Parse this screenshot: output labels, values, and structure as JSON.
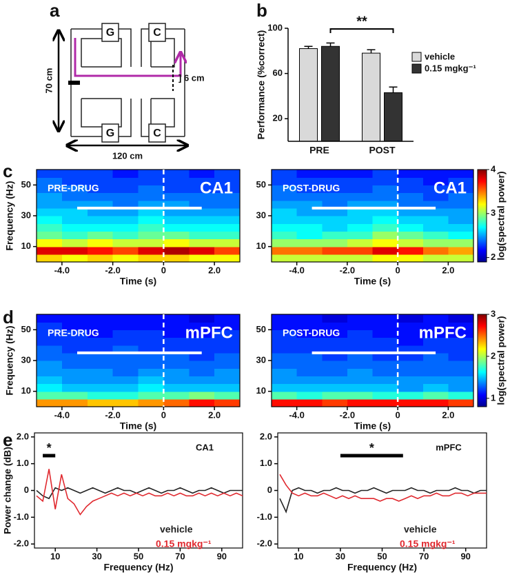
{
  "panel_labels": [
    "a",
    "b",
    "c",
    "d",
    "e"
  ],
  "maze": {
    "goal_labels": [
      "G",
      "C",
      "G",
      "C"
    ],
    "height_label": "70 cm",
    "width_label": "120 cm",
    "corridor_label": "] 6 cm"
  },
  "chart_data": [
    {
      "type": "bar",
      "ylabel": "Performance (%correct)",
      "categories": [
        "PRE",
        "POST"
      ],
      "series": [
        {
          "name": "vehicle",
          "color": "#d9d9d9",
          "values": [
            82,
            78
          ],
          "errors": [
            2,
            3
          ]
        },
        {
          "name": "0.15 mgkg⁻¹",
          "color": "#333333",
          "values": [
            84,
            43
          ],
          "errors": [
            3,
            5
          ]
        }
      ],
      "ylim": [
        0,
        100
      ],
      "yticks": [
        20,
        60,
        100
      ],
      "annotation": "**"
    },
    {
      "type": "heatmap",
      "label": "PRE-DRUG",
      "region": "CA1",
      "xlabel": "Time (s)",
      "ylabel": "Frequency (Hz)",
      "x": [
        -4.5,
        -3.5,
        -2.5,
        -1.5,
        -0.5,
        0.5,
        1.5,
        2.5
      ],
      "y": [
        2.5,
        7.5,
        12.5,
        17.5,
        22.5,
        27.5,
        32.5,
        37.5,
        42.5,
        47.5,
        52.5,
        57.5
      ],
      "z": [
        [
          3.3,
          3.2,
          3.3,
          3.2,
          3.3,
          3.3,
          3.2,
          3.2
        ],
        [
          3.8,
          3.8,
          3.7,
          3.6,
          3.8,
          3.9,
          3.8,
          3.6
        ],
        [
          3.2,
          3.1,
          3.2,
          3.1,
          3.1,
          3.2,
          3.1,
          3.1
        ],
        [
          2.9,
          2.8,
          2.9,
          2.8,
          2.9,
          2.9,
          2.8,
          2.8
        ],
        [
          2.8,
          2.7,
          2.7,
          2.7,
          2.8,
          2.7,
          2.7,
          2.7
        ],
        [
          2.7,
          2.6,
          2.6,
          2.6,
          2.7,
          2.6,
          2.6,
          2.6
        ],
        [
          2.6,
          2.6,
          2.5,
          2.5,
          2.6,
          2.5,
          2.5,
          2.5
        ],
        [
          2.5,
          2.5,
          2.5,
          2.4,
          2.5,
          2.5,
          2.4,
          2.4
        ],
        [
          2.5,
          2.4,
          2.4,
          2.4,
          2.4,
          2.4,
          2.4,
          2.4
        ],
        [
          2.4,
          2.4,
          2.3,
          2.3,
          2.4,
          2.3,
          2.3,
          2.3
        ],
        [
          2.4,
          2.3,
          2.3,
          2.3,
          2.3,
          2.3,
          2.3,
          2.3
        ],
        [
          2.3,
          2.3,
          2.3,
          2.2,
          2.3,
          2.3,
          2.2,
          2.3
        ]
      ],
      "xlim": [
        -5,
        3
      ],
      "ylim": [
        0,
        60
      ],
      "zlim": [
        1.9,
        4
      ],
      "xticks": [
        {
          "value": -4,
          "label": "-4.0"
        },
        {
          "value": -2,
          "label": "-2.0"
        },
        0,
        {
          "value": 2,
          "label": "2.0"
        }
      ],
      "yticks": [
        10,
        30,
        50
      ],
      "event_time": 0,
      "marker_span": [
        -3.4,
        1.5
      ],
      "marker_y": 35
    },
    {
      "type": "heatmap",
      "label": "POST-DRUG",
      "region": "CA1",
      "xlabel": "Time (s)",
      "x": [
        -4.5,
        -3.5,
        -2.5,
        -1.5,
        -0.5,
        0.5,
        1.5,
        2.5
      ],
      "y": [
        2.5,
        7.5,
        12.5,
        17.5,
        22.5,
        27.5,
        32.5,
        37.5,
        42.5,
        47.5,
        52.5,
        57.5
      ],
      "z": [
        [
          3.1,
          3.1,
          3.1,
          3.1,
          3.2,
          3.2,
          3.1,
          3.1
        ],
        [
          3.5,
          3.5,
          3.6,
          3.6,
          3.8,
          3.7,
          3.5,
          3.4
        ],
        [
          3.0,
          3.0,
          3.0,
          3.1,
          3.2,
          3.1,
          3.0,
          3.0
        ],
        [
          2.8,
          2.7,
          2.8,
          2.8,
          3.0,
          2.9,
          2.8,
          2.7
        ],
        [
          2.7,
          2.7,
          2.6,
          2.7,
          2.8,
          2.7,
          2.6,
          2.6
        ],
        [
          2.6,
          2.6,
          2.6,
          2.6,
          2.7,
          2.6,
          2.6,
          2.5
        ],
        [
          2.6,
          2.5,
          2.5,
          2.6,
          2.6,
          2.5,
          2.5,
          2.5
        ],
        [
          2.5,
          2.5,
          2.4,
          2.5,
          2.5,
          2.4,
          2.4,
          2.4
        ],
        [
          2.4,
          2.4,
          2.4,
          2.4,
          2.4,
          2.4,
          2.3,
          2.4
        ],
        [
          2.4,
          2.3,
          2.3,
          2.3,
          2.4,
          2.3,
          2.3,
          2.3
        ],
        [
          2.3,
          2.3,
          2.3,
          2.3,
          2.3,
          2.3,
          2.2,
          2.3
        ],
        [
          2.3,
          2.2,
          2.2,
          2.2,
          2.3,
          2.2,
          2.2,
          2.2
        ]
      ],
      "xlim": [
        -5,
        3
      ],
      "ylim": [
        0,
        60
      ],
      "zlim": [
        1.9,
        4
      ],
      "zticks": [
        2,
        3,
        4
      ],
      "colorbar_label": "log(spectral power)",
      "xticks": [
        {
          "value": -4,
          "label": "-4.0"
        },
        {
          "value": -2,
          "label": "-2.0"
        },
        0,
        {
          "value": 2,
          "label": "2.0"
        }
      ],
      "yticks": [
        10,
        30,
        50
      ],
      "event_time": 0,
      "marker_span": [
        -3.4,
        1.5
      ],
      "marker_y": 35
    },
    {
      "type": "heatmap",
      "label": "PRE-DRUG",
      "region": "mPFC",
      "xlabel": "Time (s)",
      "ylabel": "Frequency (Hz)",
      "x": [
        -4.5,
        -3.5,
        -2.5,
        -1.5,
        -0.5,
        0.5,
        1.5,
        2.5
      ],
      "y": [
        2.5,
        7.5,
        12.5,
        17.5,
        22.5,
        27.5,
        32.5,
        37.5,
        42.5,
        47.5,
        52.5,
        57.5
      ],
      "z": [
        [
          2.4,
          2.4,
          2.3,
          2.3,
          2.4,
          2.5,
          2.7,
          2.6
        ],
        [
          1.8,
          1.8,
          1.7,
          1.7,
          1.8,
          1.8,
          1.9,
          1.8
        ],
        [
          1.6,
          1.5,
          1.5,
          1.5,
          1.6,
          1.5,
          1.5,
          1.5
        ],
        [
          1.5,
          1.4,
          1.4,
          1.4,
          1.5,
          1.4,
          1.4,
          1.4
        ],
        [
          1.4,
          1.4,
          1.4,
          1.3,
          1.4,
          1.4,
          1.3,
          1.4
        ],
        [
          1.4,
          1.3,
          1.3,
          1.3,
          1.3,
          1.3,
          1.3,
          1.3
        ],
        [
          1.3,
          1.3,
          1.3,
          1.3,
          1.3,
          1.3,
          1.2,
          1.3
        ],
        [
          1.3,
          1.2,
          1.2,
          1.3,
          1.2,
          1.2,
          1.2,
          1.2
        ],
        [
          1.2,
          1.2,
          1.2,
          1.2,
          1.2,
          1.2,
          1.2,
          1.2
        ],
        [
          1.2,
          1.2,
          1.1,
          1.2,
          1.2,
          1.1,
          1.1,
          1.2
        ],
        [
          1.2,
          1.1,
          1.1,
          1.1,
          1.1,
          1.1,
          1.1,
          1.1
        ],
        [
          1.1,
          1.1,
          1.1,
          1.1,
          1.1,
          1.1,
          1.0,
          1.1
        ]
      ],
      "xlim": [
        -5,
        3
      ],
      "ylim": [
        0,
        60
      ],
      "zlim": [
        0.8,
        3
      ],
      "xticks": [
        {
          "value": -4,
          "label": "-4.0"
        },
        {
          "value": -2,
          "label": "-2.0"
        },
        0,
        {
          "value": 2,
          "label": "2.0"
        }
      ],
      "yticks": [
        10,
        30,
        50
      ],
      "event_time": 0,
      "marker_span": [
        -3.4,
        1.5
      ],
      "marker_y": 35
    },
    {
      "type": "heatmap",
      "label": "POST-DRUG",
      "region": "mPFC",
      "xlabel": "Time (s)",
      "x": [
        -4.5,
        -3.5,
        -2.5,
        -1.5,
        -0.5,
        0.5,
        1.5,
        2.5
      ],
      "y": [
        2.5,
        7.5,
        12.5,
        17.5,
        22.5,
        27.5,
        32.5,
        37.5,
        42.5,
        47.5,
        52.5,
        57.5
      ],
      "z": [
        [
          2.7,
          2.7,
          2.6,
          2.7,
          2.7,
          2.7,
          2.7,
          2.6
        ],
        [
          1.8,
          1.7,
          1.8,
          1.8,
          1.7,
          1.7,
          1.8,
          1.7
        ],
        [
          1.5,
          1.5,
          1.5,
          1.5,
          1.5,
          1.4,
          1.5,
          1.4
        ],
        [
          1.4,
          1.4,
          1.4,
          1.4,
          1.4,
          1.4,
          1.4,
          1.4
        ],
        [
          1.4,
          1.3,
          1.3,
          1.4,
          1.3,
          1.3,
          1.3,
          1.3
        ],
        [
          1.3,
          1.3,
          1.3,
          1.3,
          1.3,
          1.3,
          1.3,
          1.3
        ],
        [
          1.3,
          1.3,
          1.2,
          1.3,
          1.2,
          1.2,
          1.3,
          1.2
        ],
        [
          1.2,
          1.2,
          1.2,
          1.2,
          1.2,
          1.2,
          1.2,
          1.2
        ],
        [
          1.2,
          1.2,
          1.2,
          1.2,
          1.2,
          1.1,
          1.2,
          1.2
        ],
        [
          1.2,
          1.1,
          1.1,
          1.2,
          1.1,
          1.1,
          1.1,
          1.1
        ],
        [
          1.1,
          1.1,
          1.1,
          1.1,
          1.1,
          1.1,
          1.1,
          1.1
        ],
        [
          1.1,
          1.1,
          1.0,
          1.1,
          1.1,
          1.0,
          1.1,
          1.0
        ]
      ],
      "xlim": [
        -5,
        3
      ],
      "ylim": [
        0,
        60
      ],
      "zlim": [
        0.8,
        3
      ],
      "zticks": [
        1,
        2,
        3
      ],
      "colorbar_label": "log(spectral power)",
      "xticks": [
        {
          "value": -4,
          "label": "-4.0"
        },
        {
          "value": -2,
          "label": "-2.0"
        },
        0,
        {
          "value": 2,
          "label": "2.0"
        }
      ],
      "yticks": [
        10,
        30,
        50
      ],
      "event_time": 0,
      "marker_span": [
        -3.4,
        1.5
      ],
      "marker_y": 35
    },
    {
      "type": "line",
      "title": "CA1",
      "xlabel": "Frequency (Hz)",
      "ylabel": "Power change (dB)",
      "x": [
        1,
        4,
        7,
        10,
        13,
        16,
        19,
        22,
        25,
        28,
        31,
        34,
        37,
        40,
        43,
        46,
        49,
        52,
        55,
        58,
        61,
        64,
        67,
        70,
        73,
        76,
        79,
        82,
        85,
        88,
        91,
        94,
        97,
        100
      ],
      "series": [
        {
          "name": "vehicle",
          "color": "#222222",
          "values": [
            0.0,
            -0.2,
            -0.3,
            0.1,
            0.0,
            0.1,
            0.0,
            -0.1,
            0.0,
            0.1,
            0.0,
            -0.1,
            0.0,
            0.1,
            0.0,
            0.0,
            -0.1,
            0.0,
            0.1,
            0.0,
            -0.1,
            0.0,
            0.0,
            0.1,
            0.0,
            -0.1,
            0.0,
            0.0,
            0.1,
            0.0,
            -0.1,
            0.0,
            0.0,
            0.0
          ]
        },
        {
          "name": "0.15 mgkg⁻¹",
          "color": "#e0282e",
          "values": [
            -0.2,
            -0.4,
            0.8,
            -0.7,
            0.6,
            -0.3,
            -0.5,
            -0.9,
            -0.6,
            -0.4,
            -0.3,
            -0.2,
            -0.1,
            -0.2,
            -0.1,
            -0.2,
            -0.1,
            -0.2,
            -0.1,
            -0.2,
            -0.2,
            -0.1,
            -0.2,
            -0.1,
            -0.2,
            -0.2,
            -0.1,
            -0.2,
            -0.1,
            -0.2,
            -0.1,
            -0.2,
            -0.1,
            -0.2
          ]
        }
      ],
      "xlim": [
        0,
        100
      ],
      "ylim": [
        -2.15,
        2.15
      ],
      "xticks": [
        10,
        30,
        50,
        70,
        90
      ],
      "yticks": [
        {
          "value": -2,
          "label": "-2.0"
        },
        {
          "value": -1,
          "label": "-1.0"
        },
        0,
        {
          "value": 1,
          "label": "1.0"
        },
        {
          "value": 2,
          "label": "2.0"
        }
      ],
      "annotation": "*",
      "sig_span": [
        4,
        10
      ],
      "sig_y": 1.3
    },
    {
      "type": "line",
      "title": "mPFC",
      "xlabel": "Frequency (Hz)",
      "x": [
        1,
        4,
        7,
        10,
        13,
        16,
        19,
        22,
        25,
        28,
        31,
        34,
        37,
        40,
        43,
        46,
        49,
        52,
        55,
        58,
        61,
        64,
        67,
        70,
        73,
        76,
        79,
        82,
        85,
        88,
        91,
        94,
        97,
        100
      ],
      "series": [
        {
          "name": "vehicle",
          "color": "#222222",
          "values": [
            -0.3,
            -0.8,
            0.0,
            0.1,
            0.0,
            0.0,
            -0.1,
            0.0,
            0.0,
            0.1,
            0.0,
            0.0,
            -0.1,
            0.0,
            0.0,
            0.1,
            0.0,
            -0.1,
            0.0,
            0.0,
            0.0,
            0.1,
            0.0,
            0.0,
            -0.1,
            0.0,
            0.0,
            0.0,
            0.1,
            0.0,
            0.0,
            -0.1,
            0.0,
            0.0
          ]
        },
        {
          "name": "0.15 mgkg⁻¹",
          "color": "#e0282e",
          "values": [
            0.6,
            0.2,
            -0.1,
            -0.2,
            -0.1,
            -0.2,
            -0.2,
            -0.1,
            -0.2,
            -0.3,
            -0.2,
            -0.3,
            -0.2,
            -0.3,
            -0.3,
            -0.3,
            -0.4,
            -0.3,
            -0.3,
            -0.4,
            -0.3,
            -0.2,
            -0.3,
            -0.2,
            -0.2,
            -0.1,
            -0.2,
            -0.2,
            -0.1,
            -0.1,
            -0.2,
            -0.1,
            -0.1,
            -0.1
          ]
        }
      ],
      "xlim": [
        0,
        100
      ],
      "ylim": [
        -2.15,
        2.15
      ],
      "xticks": [
        10,
        30,
        50,
        70,
        90
      ],
      "yticks": [
        {
          "value": -2,
          "label": "-2.0"
        },
        {
          "value": -1,
          "label": "-1.0"
        },
        0,
        {
          "value": 1,
          "label": "1.0"
        },
        {
          "value": 2,
          "label": "2.0"
        }
      ],
      "annotation": "*",
      "sig_span": [
        30,
        60
      ],
      "sig_y": 1.3
    }
  ]
}
